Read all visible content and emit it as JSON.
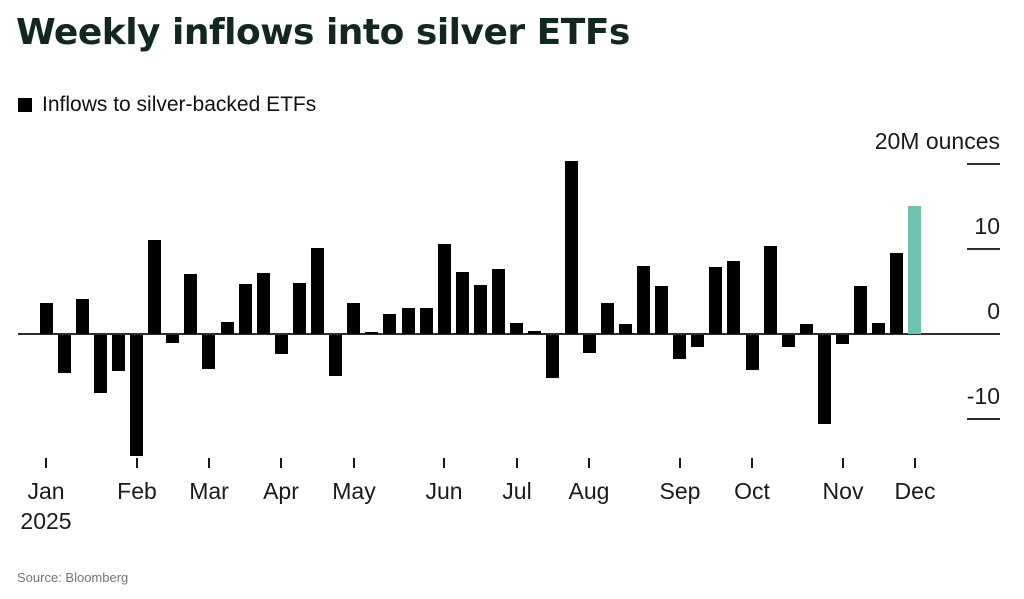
{
  "header": {
    "title": "Weekly inflows into silver ETFs"
  },
  "legend": {
    "label": "Inflows to silver-backed ETFs",
    "swatch_color": "#000000"
  },
  "source": {
    "text": "Source: Bloomberg"
  },
  "colors": {
    "bar": "#000000",
    "highlight": "#6fc3ae",
    "title_text": "#132722",
    "axis_text": "#1a1a1a",
    "axis_line": "#2e2e2e",
    "source_text": "#757575",
    "background": "#ffffff"
  },
  "chart_data": {
    "type": "bar",
    "title": "Weekly inflows into silver ETFs",
    "series_name": "Inflows to silver-backed ETFs",
    "unit": "M ounces",
    "ylabel": "20M ounces",
    "ylim": [
      -17,
      22
    ],
    "grid": false,
    "legend_position": "top-left",
    "yticks": [
      {
        "value": 20,
        "label": "20M ounces"
      },
      {
        "value": 10,
        "label": "10"
      },
      {
        "value": 0,
        "label": "0"
      },
      {
        "value": -10,
        "label": "-10"
      }
    ],
    "x_axis": {
      "year_label": "2025",
      "months": [
        {
          "label": "Jan",
          "start_week": 0
        },
        {
          "label": "Feb",
          "start_week": 5
        },
        {
          "label": "Mar",
          "start_week": 9
        },
        {
          "label": "Apr",
          "start_week": 13
        },
        {
          "label": "May",
          "start_week": 17
        },
        {
          "label": "Jun",
          "start_week": 22
        },
        {
          "label": "Jul",
          "start_week": 26
        },
        {
          "label": "Aug",
          "start_week": 30
        },
        {
          "label": "Sep",
          "start_week": 35
        },
        {
          "label": "Oct",
          "start_week": 39
        },
        {
          "label": "Nov",
          "start_week": 44
        },
        {
          "label": "Dec",
          "start_week": 48
        }
      ]
    },
    "values": [
      3.6,
      -4.5,
      4.1,
      -6.8,
      -4.2,
      -14.2,
      11.1,
      -0.9,
      7.1,
      -4.0,
      1.4,
      5.9,
      7.2,
      -2.2,
      6.0,
      10.1,
      -4.8,
      3.6,
      0.2,
      2.4,
      3.1,
      3.1,
      10.6,
      7.3,
      5.8,
      7.6,
      1.3,
      0.4,
      -5.1,
      20.3,
      -2.1,
      3.6,
      1.2,
      8.0,
      5.6,
      -2.8,
      -1.4,
      7.9,
      8.6,
      -4.1,
      10.4,
      -1.4,
      1.2,
      -10.5,
      -1.1,
      5.6,
      1.3,
      9.5,
      15.1
    ],
    "highlight_index": 48,
    "highlight_color": "#6fc3ae",
    "bar_color": "#000000"
  }
}
